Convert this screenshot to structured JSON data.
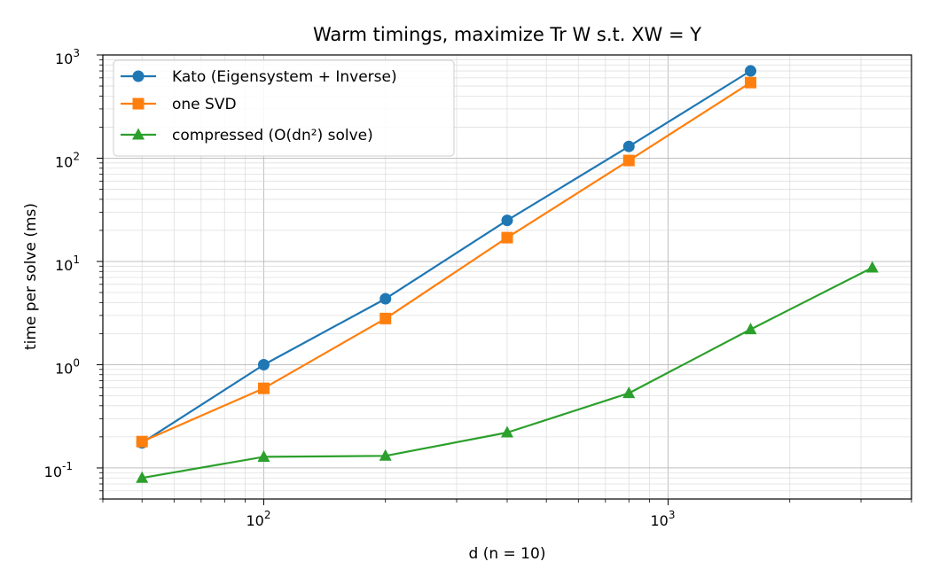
{
  "chart_data": {
    "type": "line",
    "title": "Warm timings, maximize Tr W s.t. XW = Y",
    "xlabel": "d   (n = 10)",
    "ylabel": "time per solve (ms)",
    "xscale": "log",
    "yscale": "log",
    "xlim": [
      40,
      4000
    ],
    "ylim": [
      0.05,
      1000
    ],
    "x_ticks": [
      {
        "value": 100,
        "label": "10^2"
      },
      {
        "value": 1000,
        "label": "10^3"
      }
    ],
    "y_ticks": [
      {
        "value": 0.1,
        "label": "10^-1"
      },
      {
        "value": 1,
        "label": "10^0"
      },
      {
        "value": 10,
        "label": "10^1"
      },
      {
        "value": 100,
        "label": "10^2"
      },
      {
        "value": 1000,
        "label": "10^3"
      }
    ],
    "grid": true,
    "legend_position": "top-left",
    "series": [
      {
        "name": "Kato (Eigensystem + Inverse)",
        "color": "#1f77b4",
        "marker": "circle",
        "x": [
          50,
          100,
          200,
          400,
          800,
          1600
        ],
        "y": [
          0.175,
          1.0,
          4.35,
          25,
          130,
          700
        ]
      },
      {
        "name": "one SVD",
        "color": "#ff7f0e",
        "marker": "square",
        "x": [
          50,
          100,
          200,
          400,
          800,
          1600
        ],
        "y": [
          0.18,
          0.59,
          2.8,
          17,
          95,
          540
        ]
      },
      {
        "name": "compressed (O(dn²) solve)",
        "color": "#2ca02c",
        "marker": "triangle",
        "x": [
          50,
          100,
          200,
          400,
          800,
          1600,
          3200
        ],
        "y": [
          0.08,
          0.128,
          0.131,
          0.22,
          0.53,
          2.2,
          8.7
        ]
      }
    ]
  }
}
